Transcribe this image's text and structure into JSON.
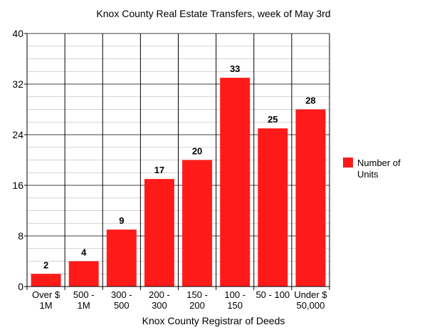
{
  "chart_data": {
    "type": "bar",
    "title": "Knox County Real Estate Transfers, week of May 3rd",
    "xlabel": "Knox County Registrar of Deeds",
    "ylabel": "",
    "categories": [
      [
        "Over $",
        "1M"
      ],
      [
        "500 -",
        "1M"
      ],
      [
        "300 -",
        "500"
      ],
      [
        "200 -",
        "300"
      ],
      [
        "150 -",
        "200"
      ],
      [
        "100 -",
        "150"
      ],
      [
        "50 - 100"
      ],
      [
        "Under $",
        "50,000"
      ]
    ],
    "series": [
      {
        "name": [
          "Number of",
          "Units"
        ],
        "values": [
          2,
          4,
          9,
          17,
          20,
          33,
          25,
          28
        ],
        "color": "#ff1a1a"
      }
    ],
    "ylim": [
      0,
      40
    ],
    "yticks": [
      0,
      8,
      16,
      24,
      32,
      40
    ],
    "grid": true,
    "data_labels": true,
    "legend": "right"
  }
}
